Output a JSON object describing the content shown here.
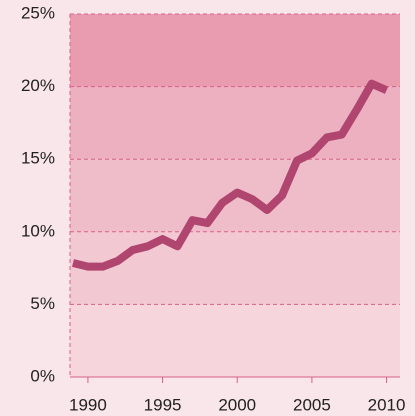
{
  "chart_data": {
    "type": "line",
    "x": [
      1989,
      1990,
      1991,
      1992,
      1993,
      1994,
      1995,
      1996,
      1997,
      1998,
      1999,
      2000,
      2001,
      2002,
      2003,
      2004,
      2005,
      2006,
      2007,
      2008,
      2009,
      2010
    ],
    "series": [
      {
        "color": "#b0466f",
        "values": [
          7.85,
          7.6,
          7.6,
          8.0,
          8.75,
          9.0,
          9.5,
          9.0,
          10.8,
          10.6,
          12.0,
          12.7,
          12.25,
          11.5,
          12.5,
          14.9,
          15.4,
          16.5,
          16.7,
          18.4,
          20.2,
          19.75
        ]
      }
    ],
    "xlim": [
      1988.8,
      2010.9
    ],
    "xticks": [
      1990,
      1995,
      2000,
      2005,
      2010
    ],
    "ylim": [
      0,
      25
    ],
    "yticks": [
      {
        "value": 0,
        "label": "0%"
      },
      {
        "value": 5,
        "label": "5%"
      },
      {
        "value": 10,
        "label": "10%"
      },
      {
        "value": 15,
        "label": "15%"
      },
      {
        "value": 20,
        "label": "20%"
      },
      {
        "value": 25,
        "label": "25%"
      }
    ],
    "grid": true,
    "band_colors": [
      "#f6d5dc",
      "#f2c8d2",
      "#efbdca",
      "#ecb0c1",
      "#e99bb0"
    ]
  }
}
